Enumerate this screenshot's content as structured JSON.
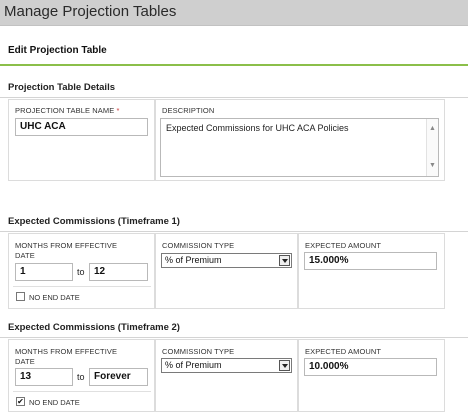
{
  "header": {
    "title": "Manage Projection Tables"
  },
  "edit_title": "Edit Projection Table",
  "details": {
    "section_title": "Projection Table Details",
    "name_label": "PROJECTION TABLE NAME",
    "required_mark": "*",
    "name_value": "UHC ACA",
    "description_label": "DESCRIPTION",
    "description_value": "Expected Commissions for UHC ACA Policies"
  },
  "timeframe1": {
    "section_title": "Expected Commissions (Timeframe 1)",
    "months_label": "MONTHS FROM EFFECTIVE DATE",
    "from_value": "1",
    "to_label": "to",
    "to_value": "12",
    "no_end_date_label": "NO END DATE",
    "no_end_date_checked": false,
    "commission_type_label": "COMMISSION TYPE",
    "commission_type_value": "% of Premium",
    "expected_amount_label": "EXPECTED AMOUNT",
    "expected_amount_value": "15.000%"
  },
  "timeframe2": {
    "section_title": "Expected Commissions (Timeframe 2)",
    "months_label": "MONTHS FROM EFFECTIVE DATE",
    "from_value": "13",
    "to_label": "to",
    "to_value": "Forever",
    "no_end_date_label": "NO END DATE",
    "no_end_date_checked": true,
    "commission_type_label": "COMMISSION TYPE",
    "commission_type_value": "% of Premium",
    "expected_amount_label": "EXPECTED AMOUNT",
    "expected_amount_value": "10.000%"
  },
  "icons": {
    "checkmark": "✔",
    "scroll_up": "▲",
    "scroll_down": "▼"
  },
  "colors": {
    "accent_rule": "#8bbf4a",
    "header_bg": "#cfcfcf"
  }
}
